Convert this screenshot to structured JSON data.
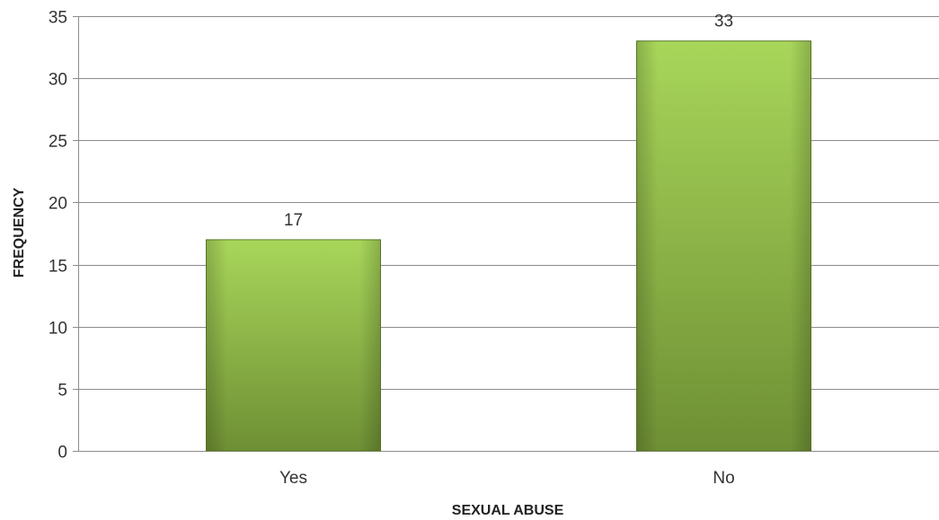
{
  "chart_data": {
    "type": "bar",
    "categories": [
      "Yes",
      "No"
    ],
    "values": [
      17,
      33
    ],
    "data_labels": [
      "17",
      "33"
    ],
    "title": "",
    "xlabel": "SEXUAL ABUSE",
    "ylabel": "FREQUENCY",
    "ylim": [
      0,
      35
    ],
    "yticks": [
      0,
      5,
      10,
      15,
      20,
      25,
      30,
      35
    ],
    "ytick_labels": [
      "0",
      "5",
      "10",
      "15",
      "20",
      "25",
      "30",
      "35"
    ],
    "grid": true,
    "legend": "none",
    "colors": {
      "bar_top": "#a8d65a",
      "bar_bottom": "#6e8f34",
      "bar_edge": "#5f7d2b"
    }
  }
}
